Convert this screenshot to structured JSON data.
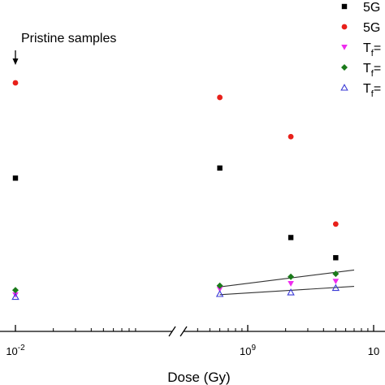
{
  "chart_data": {
    "type": "scatter",
    "title": "",
    "xlabel": "Dose (Gy)",
    "ylabel": "",
    "x_scale": "log-broken",
    "x_segments": [
      {
        "tick_values": [
          0.01
        ],
        "tick_labels": [
          {
            "base": "10",
            "exp": "-2"
          }
        ]
      },
      {
        "tick_values": [
          1000000000,
          10000000000
        ],
        "tick_labels": [
          {
            "base": "10",
            "exp": "9"
          },
          {
            "base": "10",
            "exp": ""
          }
        ]
      }
    ],
    "axis_break": "between 10^-2 and 10^9",
    "grid": false,
    "legend_position": "top-right",
    "annotation": {
      "text": "Pristine samples",
      "points_to_x": 0.01
    },
    "series": [
      {
        "name": "5G",
        "marker": "square",
        "color": "#000000",
        "points": [
          {
            "x": 0.01,
            "y": 0.575
          },
          {
            "x": 600000000,
            "y": 0.62
          },
          {
            "x": 2200000000,
            "y": 0.31
          },
          {
            "x": 5000000000,
            "y": 0.22
          }
        ]
      },
      {
        "name": "5G",
        "marker": "circle",
        "color": "#e8201a",
        "points": [
          {
            "x": 0.01,
            "y": 1.0
          },
          {
            "x": 600000000,
            "y": 0.935
          },
          {
            "x": 2200000000,
            "y": 0.76
          },
          {
            "x": 5000000000,
            "y": 0.37
          }
        ]
      },
      {
        "name": "T",
        "subscript": "f",
        "suffix": "=",
        "marker": "triangle-down",
        "color": "#ee2cee",
        "points": [
          {
            "x": 0.01,
            "y": 0.055
          },
          {
            "x": 600000000,
            "y": 0.08
          },
          {
            "x": 2200000000,
            "y": 0.105
          },
          {
            "x": 5000000000,
            "y": 0.115
          }
        ]
      },
      {
        "name": "T",
        "subscript": "f",
        "suffix": "=",
        "marker": "diamond",
        "color": "#1a7a1a",
        "points": [
          {
            "x": 0.01,
            "y": 0.075
          },
          {
            "x": 600000000,
            "y": 0.095
          },
          {
            "x": 2200000000,
            "y": 0.135
          },
          {
            "x": 5000000000,
            "y": 0.148
          }
        ]
      },
      {
        "name": "T",
        "subscript": "f",
        "suffix": "=",
        "marker": "triangle-up-open",
        "color": "#3a3ad6",
        "points": [
          {
            "x": 0.01,
            "y": 0.045
          },
          {
            "x": 600000000,
            "y": 0.058
          },
          {
            "x": 2200000000,
            "y": 0.065
          },
          {
            "x": 5000000000,
            "y": 0.085
          }
        ]
      }
    ],
    "fit_lines": [
      {
        "series_index": 3,
        "from": {
          "x": 600000000,
          "y": 0.09
        },
        "to": {
          "x": 7000000000,
          "y": 0.165
        }
      },
      {
        "series_index": 4,
        "from": {
          "x": 600000000,
          "y": 0.055
        },
        "to": {
          "x": 7000000000,
          "y": 0.092
        }
      }
    ]
  }
}
